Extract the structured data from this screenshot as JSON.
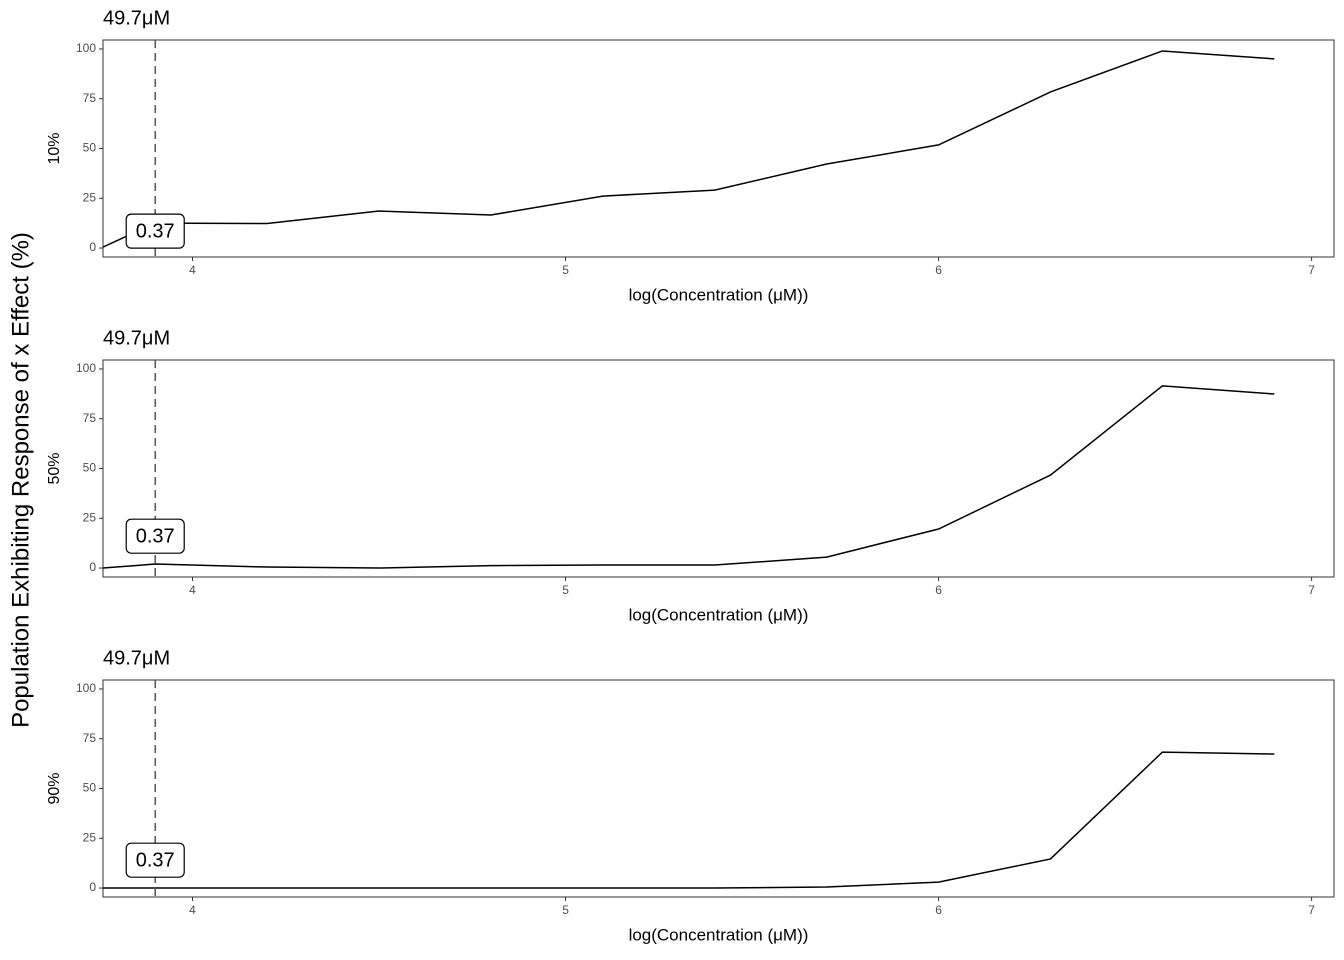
{
  "ylabel": "Population Exhibiting Response of x Effect (%)",
  "chart_data": [
    {
      "type": "line",
      "title": "49.7μM",
      "ylabel": "10%",
      "xlabel": "log(Concentration (μM))",
      "x": [
        3.76,
        3.9,
        4.2,
        4.5,
        4.8,
        5.1,
        5.4,
        5.7,
        6.0,
        6.3,
        6.6,
        6.9
      ],
      "values": [
        0.5,
        12.5,
        12.3,
        18.6,
        16.6,
        26.1,
        29.1,
        42.2,
        51.8,
        78.4,
        99,
        95
      ],
      "color": "#000000",
      "xlim": [
        3.76,
        7.06
      ],
      "ylim": [
        -4.5,
        104.5
      ],
      "xticks": [
        4,
        5,
        6,
        7
      ],
      "yticks": [
        0,
        25,
        50,
        75,
        100
      ],
      "grid": false,
      "vline": 3.9,
      "annotation": {
        "x": 3.9,
        "y": 8.5,
        "text": "0.37"
      }
    },
    {
      "type": "line",
      "title": "49.7μM",
      "ylabel": "50%",
      "xlabel": "log(Concentration (μM))",
      "x": [
        3.76,
        3.9,
        4.2,
        4.5,
        4.8,
        5.1,
        5.4,
        5.7,
        6.0,
        6.3,
        6.6,
        6.9
      ],
      "values": [
        0,
        2,
        0.5,
        0,
        1.2,
        1.5,
        1.5,
        5.5,
        19.6,
        46.7,
        91.5,
        87.4
      ],
      "color": "#000000",
      "xlim": [
        3.76,
        7.06
      ],
      "ylim": [
        -4.5,
        104.5
      ],
      "xticks": [
        4,
        5,
        6,
        7
      ],
      "yticks": [
        0,
        25,
        50,
        75,
        100
      ],
      "grid": false,
      "vline": 3.9,
      "annotation": {
        "x": 3.9,
        "y": 16,
        "text": "0.37"
      }
    },
    {
      "type": "line",
      "title": "49.7μM",
      "ylabel": "90%",
      "xlabel": "log(Concentration (μM))",
      "x": [
        3.76,
        3.9,
        4.2,
        4.5,
        4.8,
        5.1,
        5.4,
        5.7,
        6.0,
        6.3,
        6.6,
        6.9
      ],
      "values": [
        0,
        0,
        0,
        0,
        0,
        0,
        0,
        0.5,
        3,
        14.6,
        68.3,
        67.3
      ],
      "color": "#000000",
      "xlim": [
        3.76,
        7.06
      ],
      "ylim": [
        -4.5,
        104.5
      ],
      "xticks": [
        4,
        5,
        6,
        7
      ],
      "yticks": [
        0,
        25,
        50,
        75,
        100
      ],
      "grid": false,
      "vline": 3.9,
      "annotation": {
        "x": 3.9,
        "y": 14,
        "text": "0.37"
      }
    }
  ]
}
